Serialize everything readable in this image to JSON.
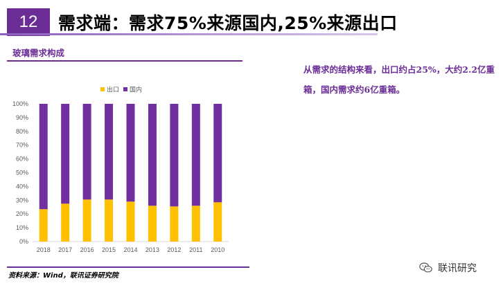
{
  "slide": {
    "number": "12",
    "title": "需求端：需求75%来源国内,25%来源出口"
  },
  "chart_section": {
    "header": "玻璃需求构成",
    "source": "资料来源：Wind，联讯证券研究院"
  },
  "note": {
    "text": "从需求的结构来看，出口约占25%，大约2.2亿重箱，国内需求约6亿重箱。"
  },
  "watermark": {
    "text": "联讯研究",
    "icon": "wechat-icon"
  },
  "colors": {
    "export": "#ffc000",
    "domestic": "#7030a0",
    "accent": "#6a2d96"
  },
  "chart_data": {
    "type": "bar",
    "stacked": true,
    "percent": true,
    "categories": [
      "2018",
      "2017",
      "2016",
      "2015",
      "2014",
      "2013",
      "2012",
      "2011",
      "2010"
    ],
    "series": [
      {
        "name": "出口",
        "values": [
          23.5,
          27.5,
          30.5,
          30.5,
          29.0,
          26.0,
          25.5,
          26.0,
          28.5
        ]
      },
      {
        "name": "国内",
        "values": [
          76.5,
          72.5,
          69.5,
          69.5,
          71.0,
          74.0,
          74.5,
          74.0,
          71.5
        ]
      }
    ],
    "ylim": [
      0,
      100
    ],
    "yticks": [
      "0%",
      "10%",
      "20%",
      "30%",
      "40%",
      "50%",
      "60%",
      "70%",
      "80%",
      "90%",
      "100%"
    ],
    "legend_position": "top",
    "grid": false
  }
}
